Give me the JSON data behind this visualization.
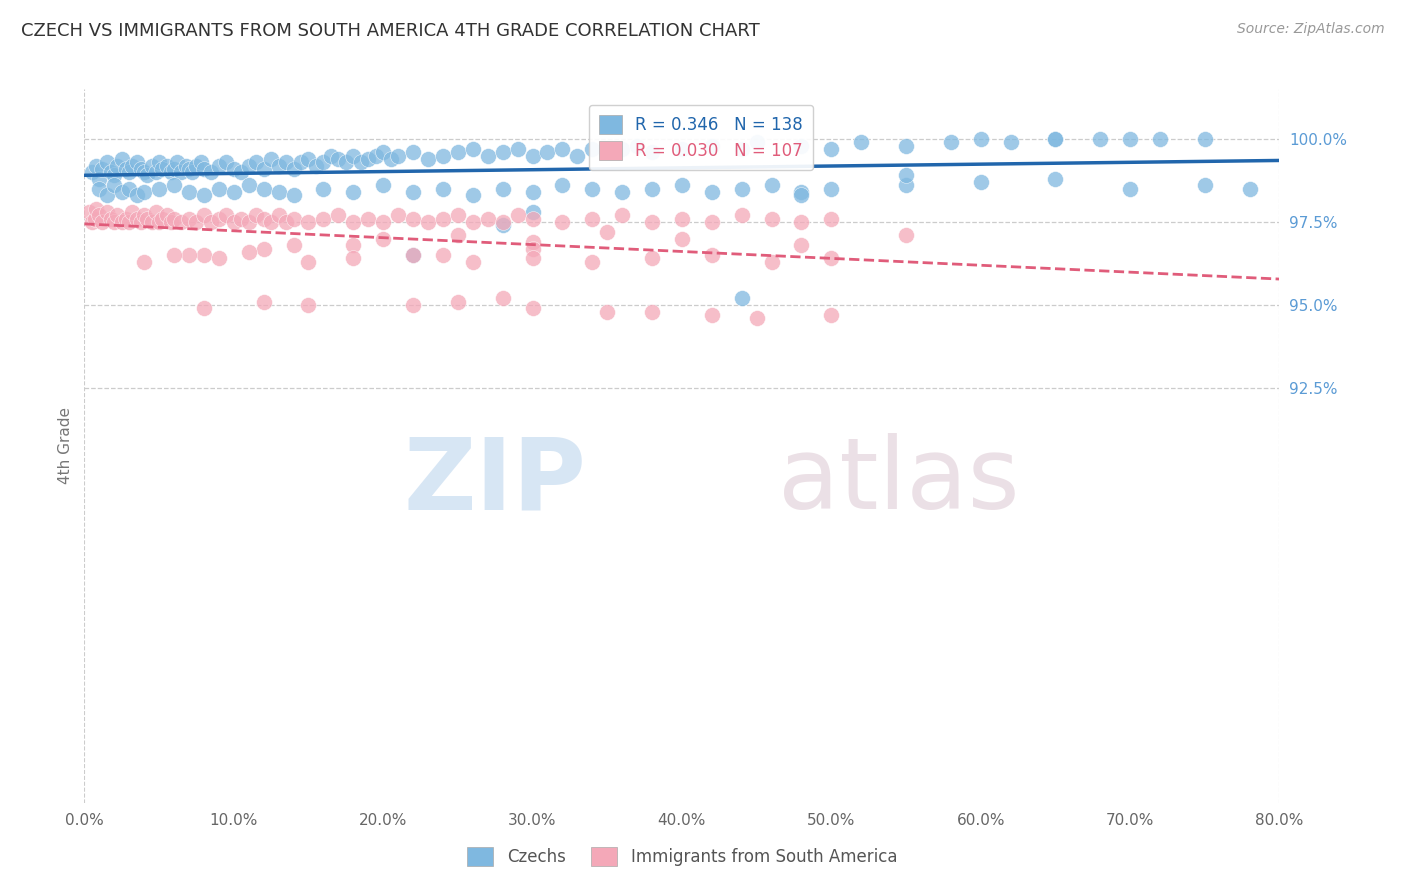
{
  "title": "CZECH VS IMMIGRANTS FROM SOUTH AMERICA 4TH GRADE CORRELATION CHART",
  "source": "Source: ZipAtlas.com",
  "ylabel": "4th Grade",
  "xlim": [
    0.0,
    80.0
  ],
  "ylim": [
    80.0,
    101.5
  ],
  "xticks": [
    0.0,
    10.0,
    20.0,
    30.0,
    40.0,
    50.0,
    60.0,
    70.0,
    80.0
  ],
  "right_ytick_labels": [
    "100.0%",
    "97.5%",
    "95.0%",
    "92.5%"
  ],
  "right_ytick_positions": [
    100.0,
    97.5,
    95.0,
    92.5
  ],
  "blue_color": "#7fb8e0",
  "pink_color": "#f4a8b8",
  "blue_line_color": "#2166ac",
  "pink_line_color": "#e05c7a",
  "legend_blue_label": "R = 0.346   N = 138",
  "legend_pink_label": "R = 0.030   N = 107",
  "czechs_label": "Czechs",
  "immigrants_label": "Immigrants from South America",
  "watermark_zip": "ZIP",
  "watermark_atlas": "atlas",
  "background_color": "#ffffff",
  "grid_color": "#cccccc",
  "title_color": "#333333",
  "axis_label_color": "#777777",
  "right_label_color": "#5b9bd5",
  "blue_scatter_x": [
    0.5,
    0.8,
    1.0,
    1.2,
    1.5,
    1.8,
    2.0,
    2.2,
    2.5,
    2.8,
    3.0,
    3.2,
    3.5,
    3.8,
    4.0,
    4.2,
    4.5,
    4.8,
    5.0,
    5.2,
    5.5,
    5.8,
    6.0,
    6.2,
    6.5,
    6.8,
    7.0,
    7.2,
    7.5,
    7.8,
    8.0,
    8.5,
    9.0,
    9.5,
    10.0,
    10.5,
    11.0,
    11.5,
    12.0,
    12.5,
    13.0,
    13.5,
    14.0,
    14.5,
    15.0,
    15.5,
    16.0,
    16.5,
    17.0,
    17.5,
    18.0,
    18.5,
    19.0,
    19.5,
    20.0,
    20.5,
    21.0,
    22.0,
    23.0,
    24.0,
    25.0,
    26.0,
    27.0,
    28.0,
    29.0,
    30.0,
    31.0,
    32.0,
    33.0,
    34.0,
    35.0,
    36.0,
    37.0,
    38.0,
    40.0,
    42.0,
    44.0,
    45.0,
    48.0,
    50.0,
    52.0,
    55.0,
    58.0,
    60.0,
    62.0,
    65.0,
    68.0,
    70.0,
    72.0,
    75.0,
    1.0,
    1.5,
    2.0,
    2.5,
    3.0,
    3.5,
    4.0,
    5.0,
    6.0,
    7.0,
    8.0,
    9.0,
    10.0,
    11.0,
    12.0,
    13.0,
    14.0,
    16.0,
    18.0,
    20.0,
    22.0,
    24.0,
    26.0,
    28.0,
    30.0,
    32.0,
    34.0,
    36.0,
    38.0,
    40.0,
    42.0,
    44.0,
    46.0,
    48.0,
    50.0,
    55.0,
    60.0,
    65.0,
    70.0,
    75.0,
    78.0,
    28.0,
    44.0,
    55.0,
    30.0,
    22.0,
    48.0,
    65.0
  ],
  "blue_scatter_y": [
    99.0,
    99.2,
    98.8,
    99.1,
    99.3,
    99.0,
    98.9,
    99.2,
    99.4,
    99.1,
    99.0,
    99.2,
    99.3,
    99.1,
    99.0,
    98.9,
    99.2,
    99.0,
    99.3,
    99.1,
    99.2,
    99.0,
    99.1,
    99.3,
    99.0,
    99.2,
    99.1,
    99.0,
    99.2,
    99.3,
    99.1,
    99.0,
    99.2,
    99.3,
    99.1,
    99.0,
    99.2,
    99.3,
    99.1,
    99.4,
    99.2,
    99.3,
    99.1,
    99.3,
    99.4,
    99.2,
    99.3,
    99.5,
    99.4,
    99.3,
    99.5,
    99.3,
    99.4,
    99.5,
    99.6,
    99.4,
    99.5,
    99.6,
    99.4,
    99.5,
    99.6,
    99.7,
    99.5,
    99.6,
    99.7,
    99.5,
    99.6,
    99.7,
    99.5,
    99.7,
    99.6,
    99.7,
    99.8,
    99.6,
    99.7,
    99.8,
    99.7,
    99.9,
    99.8,
    99.7,
    99.9,
    99.8,
    99.9,
    100.0,
    99.9,
    100.0,
    100.0,
    100.0,
    100.0,
    100.0,
    98.5,
    98.3,
    98.6,
    98.4,
    98.5,
    98.3,
    98.4,
    98.5,
    98.6,
    98.4,
    98.3,
    98.5,
    98.4,
    98.6,
    98.5,
    98.4,
    98.3,
    98.5,
    98.4,
    98.6,
    98.4,
    98.5,
    98.3,
    98.5,
    98.4,
    98.6,
    98.5,
    98.4,
    98.5,
    98.6,
    98.4,
    98.5,
    98.6,
    98.4,
    98.5,
    98.6,
    98.7,
    98.8,
    98.5,
    98.6,
    98.5,
    97.4,
    95.2,
    98.9,
    97.8,
    96.5,
    98.3,
    100.0
  ],
  "pink_scatter_x": [
    0.3,
    0.5,
    0.7,
    0.8,
    1.0,
    1.2,
    1.5,
    1.8,
    2.0,
    2.2,
    2.5,
    2.8,
    3.0,
    3.2,
    3.5,
    3.8,
    4.0,
    4.2,
    4.5,
    4.8,
    5.0,
    5.2,
    5.5,
    5.8,
    6.0,
    6.5,
    7.0,
    7.5,
    8.0,
    8.5,
    9.0,
    9.5,
    10.0,
    10.5,
    11.0,
    11.5,
    12.0,
    12.5,
    13.0,
    13.5,
    14.0,
    15.0,
    16.0,
    17.0,
    18.0,
    19.0,
    20.0,
    21.0,
    22.0,
    23.0,
    24.0,
    25.0,
    26.0,
    27.0,
    28.0,
    29.0,
    30.0,
    32.0,
    34.0,
    36.0,
    38.0,
    40.0,
    42.0,
    44.0,
    46.0,
    48.0,
    50.0,
    8.0,
    14.0,
    20.0,
    25.0,
    30.0,
    35.0,
    40.0,
    48.0,
    55.0,
    7.0,
    12.0,
    18.0,
    24.0,
    30.0,
    4.0,
    6.0,
    9.0,
    11.0,
    15.0,
    18.0,
    22.0,
    26.0,
    30.0,
    34.0,
    38.0,
    42.0,
    46.0,
    50.0,
    38.0,
    45.0,
    28.0,
    22.0,
    30.0,
    42.0,
    25.0,
    35.0,
    15.0,
    50.0,
    12.0,
    8.0
  ],
  "pink_scatter_y": [
    97.8,
    97.5,
    97.6,
    97.9,
    97.7,
    97.5,
    97.8,
    97.6,
    97.5,
    97.7,
    97.5,
    97.6,
    97.5,
    97.8,
    97.6,
    97.5,
    97.7,
    97.6,
    97.5,
    97.8,
    97.5,
    97.6,
    97.7,
    97.5,
    97.6,
    97.5,
    97.6,
    97.5,
    97.7,
    97.5,
    97.6,
    97.7,
    97.5,
    97.6,
    97.5,
    97.7,
    97.6,
    97.5,
    97.7,
    97.5,
    97.6,
    97.5,
    97.6,
    97.7,
    97.5,
    97.6,
    97.5,
    97.7,
    97.6,
    97.5,
    97.6,
    97.7,
    97.5,
    97.6,
    97.5,
    97.7,
    97.6,
    97.5,
    97.6,
    97.7,
    97.5,
    97.6,
    97.5,
    97.7,
    97.6,
    97.5,
    97.6,
    96.5,
    96.8,
    97.0,
    97.1,
    96.9,
    97.2,
    97.0,
    96.8,
    97.1,
    96.5,
    96.7,
    96.8,
    96.5,
    96.7,
    96.3,
    96.5,
    96.4,
    96.6,
    96.3,
    96.4,
    96.5,
    96.3,
    96.4,
    96.3,
    96.4,
    96.5,
    96.3,
    96.4,
    94.8,
    94.6,
    95.2,
    95.0,
    94.9,
    94.7,
    95.1,
    94.8,
    95.0,
    94.7,
    95.1,
    94.9
  ]
}
